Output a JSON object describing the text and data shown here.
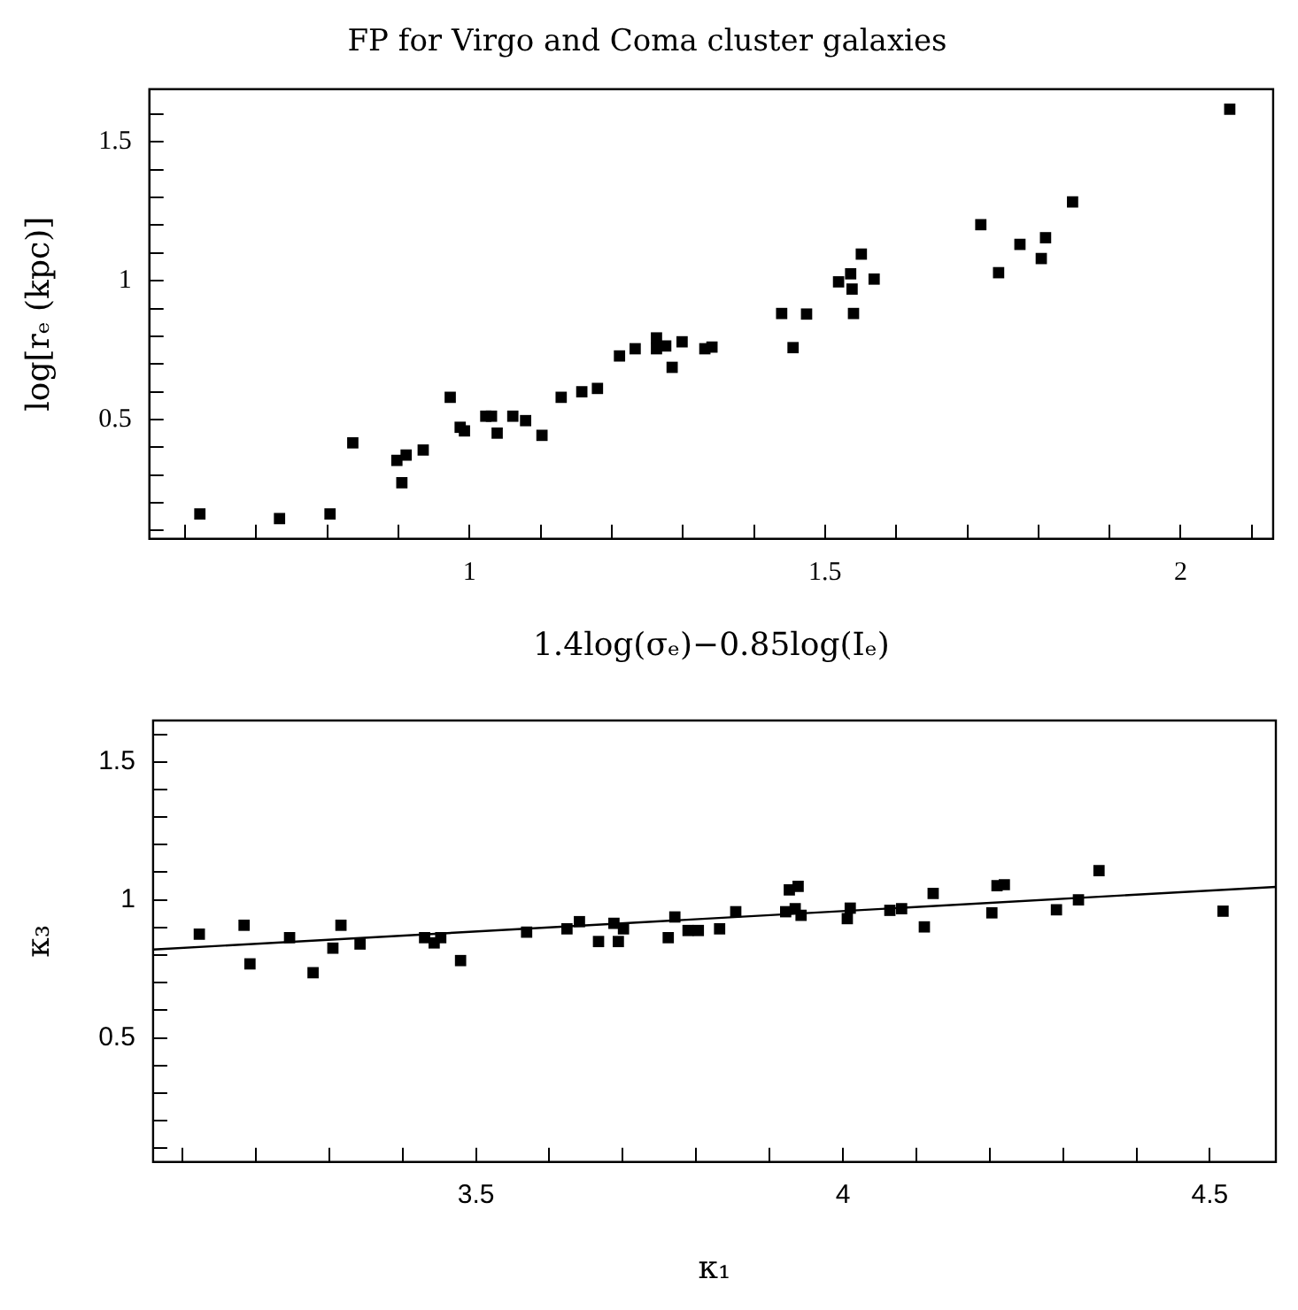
{
  "chart_data": [
    {
      "type": "scatter",
      "title": "FP for Virgo and Coma cluster galaxies",
      "xlabel": "1.4log(σₑ)−0.85log(Iₑ)",
      "ylabel": "log[rₑ (kpc)]",
      "marker": "square",
      "grid": false,
      "xlim": [
        0.55,
        2.13
      ],
      "xticks": [
        {
          "value": 0.6,
          "label": null
        },
        {
          "value": 0.7,
          "label": null
        },
        {
          "value": 0.8,
          "label": null
        },
        {
          "value": 0.9,
          "label": null
        },
        1,
        {
          "value": 1.1,
          "label": null
        },
        {
          "value": 1.2,
          "label": null
        },
        {
          "value": 1.3,
          "label": null
        },
        {
          "value": 1.4,
          "label": null
        },
        1.5,
        {
          "value": 1.6,
          "label": null
        },
        {
          "value": 1.7,
          "label": null
        },
        {
          "value": 1.8,
          "label": null
        },
        {
          "value": 1.9,
          "label": null
        },
        2,
        {
          "value": 2.1,
          "label": null
        }
      ],
      "ylim": [
        0.07,
        1.69
      ],
      "yticks": [
        {
          "value": 0.1,
          "label": null
        },
        {
          "value": 0.2,
          "label": null
        },
        {
          "value": 0.3,
          "label": null
        },
        {
          "value": 0.4,
          "label": null
        },
        0.5,
        {
          "value": 0.6,
          "label": null
        },
        {
          "value": 0.7,
          "label": null
        },
        {
          "value": 0.8,
          "label": null
        },
        {
          "value": 0.9,
          "label": null
        },
        1,
        {
          "value": 1.1,
          "label": null
        },
        {
          "value": 1.2,
          "label": null
        },
        {
          "value": 1.3,
          "label": null
        },
        {
          "value": 1.4,
          "label": null
        },
        1.5,
        {
          "value": 1.6,
          "label": null
        }
      ],
      "series": [
        {
          "color": "#000000",
          "x": [
            0.621,
            0.733,
            0.804,
            0.836,
            0.898,
            0.911,
            0.905,
            0.935,
            0.973,
            0.987,
            0.993,
            1.023,
            1.031,
            1.039,
            1.061,
            1.079,
            1.102,
            1.129,
            1.158,
            1.18,
            1.211,
            1.233,
            1.263,
            1.263,
            1.276,
            1.285,
            1.299,
            1.331,
            1.341,
            1.439,
            1.474,
            1.455,
            1.519,
            1.536,
            1.538,
            1.54,
            1.551,
            1.569,
            1.719,
            1.744,
            1.774,
            1.81,
            1.804,
            1.848,
            2.069
          ],
          "values": [
            0.16,
            0.143,
            0.16,
            0.416,
            0.353,
            0.372,
            0.272,
            0.39,
            0.58,
            0.472,
            0.459,
            0.512,
            0.512,
            0.451,
            0.512,
            0.496,
            0.443,
            0.58,
            0.6,
            0.612,
            0.729,
            0.755,
            0.794,
            0.755,
            0.765,
            0.688,
            0.78,
            0.755,
            0.761,
            0.882,
            0.88,
            0.759,
            0.996,
            1.025,
            0.97,
            0.882,
            1.096,
            1.006,
            1.202,
            1.029,
            1.131,
            1.155,
            1.08,
            1.284,
            1.618
          ]
        }
      ]
    },
    {
      "type": "scatter",
      "xlabel": "κ₁",
      "ylabel": "κ₃",
      "marker": "square",
      "grid": false,
      "xlim": [
        3.06,
        4.59
      ],
      "xticks": [
        {
          "value": 3.1,
          "label": null
        },
        {
          "value": 3.2,
          "label": null
        },
        {
          "value": 3.3,
          "label": null
        },
        {
          "value": 3.4,
          "label": null
        },
        3.5,
        {
          "value": 3.6,
          "label": null
        },
        {
          "value": 3.7,
          "label": null
        },
        {
          "value": 3.8,
          "label": null
        },
        {
          "value": 3.9,
          "label": null
        },
        4,
        {
          "value": 4.1,
          "label": null
        },
        {
          "value": 4.2,
          "label": null
        },
        {
          "value": 4.3,
          "label": null
        },
        {
          "value": 4.4,
          "label": null
        },
        4.5
      ],
      "ylim": [
        0.05,
        1.65
      ],
      "yticks": [
        {
          "value": 0.1,
          "label": null
        },
        {
          "value": 0.2,
          "label": null
        },
        {
          "value": 0.3,
          "label": null
        },
        {
          "value": 0.4,
          "label": null
        },
        0.5,
        {
          "value": 0.6,
          "label": null
        },
        {
          "value": 0.7,
          "label": null
        },
        {
          "value": 0.8,
          "label": null
        },
        {
          "value": 0.9,
          "label": null
        },
        1,
        {
          "value": 1.1,
          "label": null
        },
        {
          "value": 1.2,
          "label": null
        },
        {
          "value": 1.3,
          "label": null
        },
        {
          "value": 1.4,
          "label": null
        },
        1.5,
        {
          "value": 1.6,
          "label": null
        }
      ],
      "series": [
        {
          "color": "#000000",
          "x": [
            3.123,
            3.184,
            3.192,
            3.246,
            3.278,
            3.305,
            3.316,
            3.342,
            3.43,
            3.443,
            3.452,
            3.479,
            3.569,
            3.624,
            3.641,
            3.667,
            3.694,
            3.688,
            3.701,
            3.762,
            3.771,
            3.789,
            3.803,
            3.832,
            3.854,
            3.922,
            3.927,
            3.939,
            3.935,
            3.943,
            4.006,
            4.01,
            4.064,
            4.08,
            4.111,
            4.123,
            4.203,
            4.21,
            4.22,
            4.291,
            4.321,
            4.349,
            4.518
          ],
          "values": [
            0.876,
            0.908,
            0.768,
            0.863,
            0.736,
            0.825,
            0.908,
            0.84,
            0.863,
            0.844,
            0.863,
            0.78,
            0.883,
            0.895,
            0.921,
            0.849,
            0.849,
            0.915,
            0.895,
            0.863,
            0.938,
            0.889,
            0.889,
            0.895,
            0.957,
            0.957,
            1.036,
            1.049,
            0.968,
            0.944,
            0.932,
            0.97,
            0.962,
            0.968,
            0.902,
            1.023,
            0.953,
            1.051,
            1.055,
            0.964,
            1.0,
            1.106,
            0.959
          ]
        },
        {
          "type": "line",
          "marker": "none",
          "line_style": "solid",
          "color": "#000000",
          "x": [
            3.06,
            4.59
          ],
          "values": [
            0.82,
            1.047
          ]
        }
      ]
    }
  ]
}
